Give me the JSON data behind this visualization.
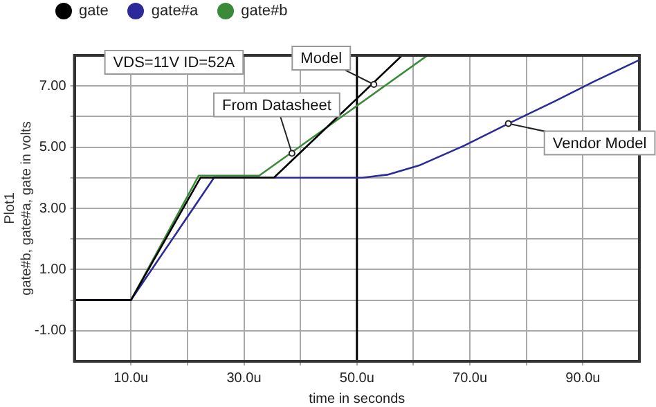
{
  "chart_data": {
    "type": "line",
    "title": "Plot1",
    "xlabel": "time in seconds",
    "ylabel": "gate#b, gate#a, gate in volts",
    "series": [
      {
        "name": "gate",
        "color": "#000000",
        "x": [
          0,
          10,
          22.3,
          35.3,
          58
        ],
        "values": [
          0,
          0,
          4.0,
          4.0,
          8
        ]
      },
      {
        "name": "gate#a",
        "color": "#2a2a9a",
        "x": [
          0,
          10,
          24.7,
          51,
          55.4,
          61,
          69,
          76.8,
          85,
          92,
          100
        ],
        "values": [
          0,
          0,
          4.0,
          4.0,
          4.1,
          4.4,
          5.05,
          5.77,
          6.5,
          7.15,
          7.85
        ]
      },
      {
        "name": "gate#b",
        "color": "#3a8a3a",
        "x": [
          0,
          10,
          22,
          32.7,
          62.5
        ],
        "values": [
          0,
          0,
          4.07,
          4.07,
          8
        ]
      }
    ],
    "xlim": [
      0,
      100
    ],
    "xticks": [
      {
        "value": 10,
        "label": "10.0u"
      },
      {
        "value": 20,
        "label": null
      },
      {
        "value": 30,
        "label": "30.0u"
      },
      {
        "value": 40,
        "label": null
      },
      {
        "value": 50,
        "label": "50.0u"
      },
      {
        "value": 60,
        "label": null
      },
      {
        "value": 70,
        "label": "70.0u"
      },
      {
        "value": 80,
        "label": null
      },
      {
        "value": 90,
        "label": "90.0u"
      }
    ],
    "ylim": [
      -2,
      8
    ],
    "yticks": [
      {
        "value": -1,
        "label": "-1.00"
      },
      {
        "value": 0,
        "label": null
      },
      {
        "value": 1,
        "label": "1.00"
      },
      {
        "value": 2,
        "label": null
      },
      {
        "value": 3,
        "label": "3.00"
      },
      {
        "value": 4,
        "label": null
      },
      {
        "value": 5,
        "label": "5.00"
      },
      {
        "value": 6,
        "label": null
      },
      {
        "value": 7,
        "label": "7.00"
      }
    ],
    "ref_lines": [
      {
        "axis": "x",
        "value": 50,
        "color": "#000000"
      }
    ],
    "annotations": [
      "VDS=11V ID=52A",
      {
        "text": "Model",
        "x": 53,
        "y": 7.05
      },
      {
        "text": "From Datasheet",
        "x": 38.5,
        "y": 4.8
      },
      {
        "text": "Vendor Model",
        "x": 76.8,
        "y": 5.77
      }
    ],
    "grid": true,
    "legend": "top left",
    "marker": "none"
  }
}
